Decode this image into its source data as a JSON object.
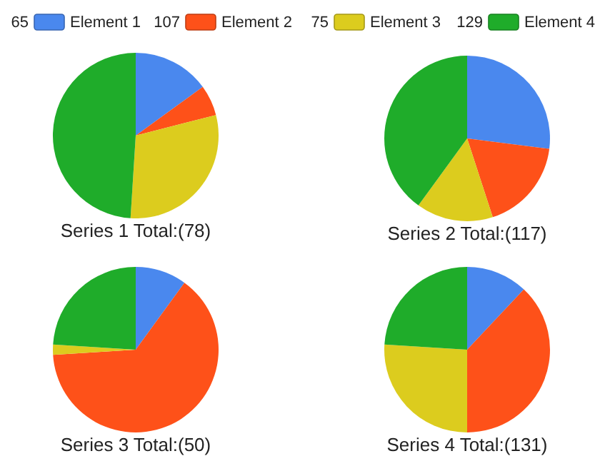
{
  "chart_data": [
    {
      "type": "pie",
      "title": "Series 1 Total:(78)",
      "categories": [
        "Element 1",
        "Element 2",
        "Element 3",
        "Element 4"
      ],
      "values": [
        15,
        6,
        30,
        49
      ],
      "colors": [
        "#4a88ee",
        "#fe5119",
        "#dccc1e",
        "#1fac2a"
      ],
      "legend": "top",
      "annotations": [
        "65",
        "107",
        "75",
        "129"
      ]
    },
    {
      "type": "pie",
      "title": "Series 2 Total:(117)",
      "categories": [
        null,
        null,
        null,
        null
      ],
      "values": [
        27,
        18,
        15,
        40
      ],
      "colors": [
        "#4a88ee",
        "#fe5119",
        "#dccc1e",
        "#1fac2a"
      ]
    },
    {
      "type": "pie",
      "title": "Series 3 Total:(50)",
      "categories": [
        null,
        null,
        null,
        null
      ],
      "values": [
        10,
        64,
        2,
        24
      ],
      "colors": [
        "#4a88ee",
        "#fe5119",
        "#dccc1e",
        "#1fac2a"
      ]
    },
    {
      "type": "pie",
      "title": "Series 4 Total:(131)",
      "categories": [
        null,
        null,
        null,
        null
      ],
      "values": [
        12,
        38,
        26,
        24
      ],
      "colors": [
        "#4a88ee",
        "#fe5119",
        "#dccc1e",
        "#1fac2a"
      ]
    }
  ]
}
